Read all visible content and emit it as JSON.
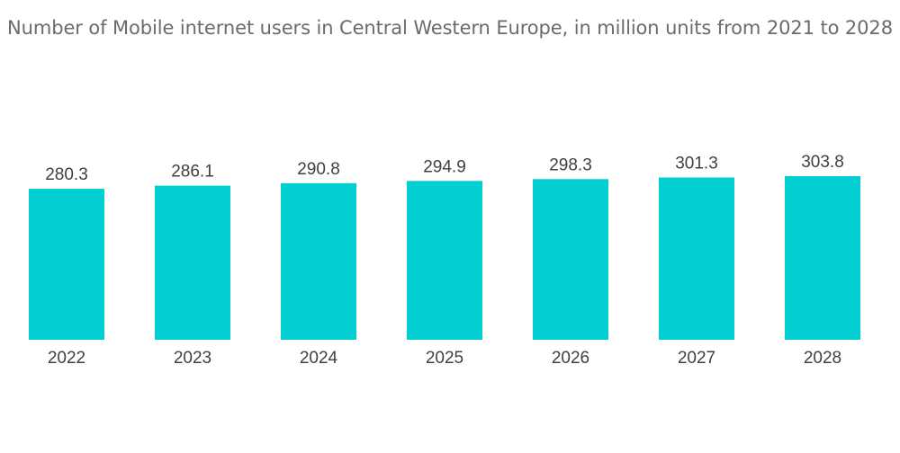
{
  "chart_data": {
    "type": "bar",
    "title": "Number of Mobile internet users in Central Western Europe, in million units from 2021 to 2028",
    "xlabel": "",
    "ylabel": "",
    "categories": [
      "2022",
      "2023",
      "2024",
      "2025",
      "2026",
      "2027",
      "2028"
    ],
    "values": [
      280.3,
      286.1,
      290.8,
      294.9,
      298.3,
      301.3,
      303.8
    ],
    "value_labels": [
      "280.3",
      "286.1",
      "290.8",
      "294.9",
      "298.3",
      "301.3",
      "303.8"
    ],
    "ylim": [
      0,
      303.8
    ],
    "grid": false,
    "legend": "none",
    "colors": {
      "bar": "#00CED1",
      "text": "#404040",
      "title": "#6b6b6b"
    }
  }
}
